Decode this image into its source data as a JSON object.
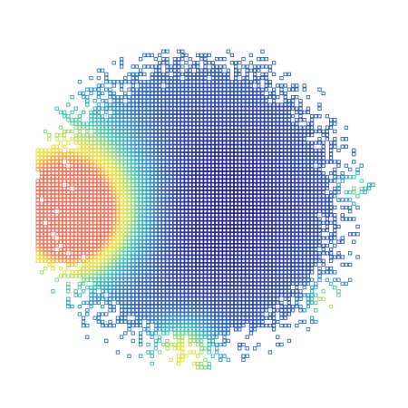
{
  "chart_data": {
    "type": "heatmap",
    "title": "",
    "xlabel": "",
    "ylabel": "",
    "grid": false,
    "legend": "none",
    "colormap": [
      "#1a1380",
      "#2b3d9a",
      "#2f6db3",
      "#2f9cc6",
      "#3fc3b2",
      "#8ad67a",
      "#d5e04a",
      "#f6e13a",
      "#f3a33a",
      "#e8705a"
    ],
    "background": "#ffffff",
    "cell_fill": "none",
    "field": {
      "shape": "disk",
      "center": [
        215,
        225
      ],
      "radius": 170,
      "low_value_region_center": [
        230,
        225
      ],
      "hotspots": [
        {
          "center": [
            75,
            215
          ],
          "peak": 0.85,
          "spread": 55
        },
        {
          "center": [
            80,
            245
          ],
          "peak": 0.7,
          "spread": 35
        },
        {
          "center": [
            200,
            390
          ],
          "peak": 0.55,
          "spread": 25
        },
        {
          "center": [
            360,
            330
          ],
          "peak": 0.45,
          "spread": 15
        },
        {
          "center": [
            390,
            205
          ],
          "peak": 0.35,
          "spread": 12
        }
      ]
    }
  }
}
